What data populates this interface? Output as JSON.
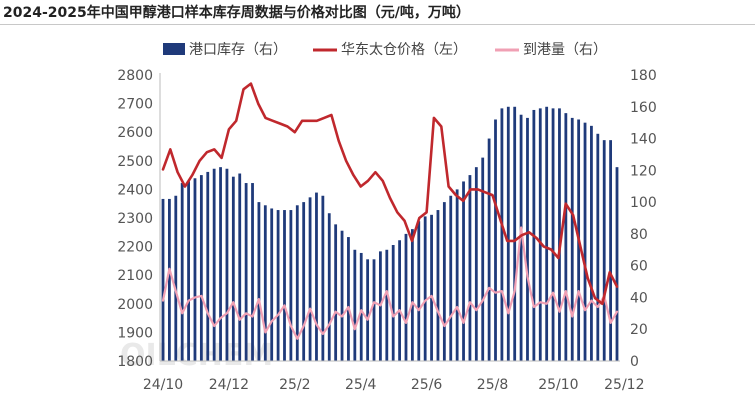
{
  "chart_data": {
    "type": "bar+line",
    "title": "2024-2025年中国甲醇港口样本库存周数据与价格对比图（元/吨，万吨）",
    "legend": [
      "港口库存（右）",
      "华东太仓价格（左）",
      "到港量（右）"
    ],
    "x_tick_labels": [
      "24/10",
      "24/12",
      "25/2",
      "25/4",
      "25/6",
      "25/8",
      "25/10",
      "25/12"
    ],
    "x_tick_index": [
      0,
      9,
      18,
      27,
      36,
      45,
      54,
      63
    ],
    "left_axis": {
      "range": [
        1800,
        2800
      ],
      "ticks": [
        1800,
        1900,
        2000,
        2100,
        2200,
        2300,
        2400,
        2500,
        2600,
        2700,
        2800
      ]
    },
    "right_axis": {
      "range": [
        0,
        180
      ],
      "ticks": [
        0,
        20,
        40,
        60,
        80,
        100,
        120,
        140,
        160,
        180
      ]
    },
    "watermark": "OILCHEM",
    "colors": {
      "inventory": "#1f3a7a",
      "price": "#c0282d",
      "arrivals": "#f0a0b4"
    },
    "series": [
      {
        "name": "港口库存（右）",
        "axis": "right",
        "type": "bar",
        "values": [
          102,
          102,
          104,
          112,
          113,
          115,
          117,
          119,
          121,
          122,
          121,
          116,
          118,
          112,
          112,
          100,
          98,
          96,
          95,
          95,
          95,
          98,
          100,
          103,
          106,
          104,
          93,
          86,
          82,
          78,
          70,
          68,
          64,
          64,
          69,
          70,
          73,
          76,
          80,
          83,
          88,
          91,
          92,
          95,
          100,
          104,
          108,
          113,
          117,
          122,
          128,
          140,
          152,
          159,
          160,
          160,
          155,
          153,
          158,
          159,
          160,
          159,
          159,
          156,
          153,
          152,
          150,
          148,
          143,
          139,
          139,
          122
        ]
      },
      {
        "name": "华东太仓价格（左）",
        "axis": "left",
        "type": "line",
        "values": [
          2470,
          2540,
          2460,
          2410,
          2450,
          2500,
          2530,
          2540,
          2510,
          2610,
          2640,
          2750,
          2770,
          2700,
          2650,
          2640,
          2630,
          2620,
          2600,
          2640,
          2640,
          2640,
          2650,
          2660,
          2570,
          2500,
          2450,
          2410,
          2430,
          2460,
          2430,
          2370,
          2320,
          2290,
          2220,
          2300,
          2320,
          2650,
          2620,
          2410,
          2380,
          2360,
          2400,
          2400,
          2390,
          2380,
          2300,
          2220,
          2220,
          2240,
          2250,
          2230,
          2200,
          2190,
          2160,
          2350,
          2310,
          2200,
          2090,
          2020,
          2000,
          2110,
          2060
        ]
      },
      {
        "name": "到港量（右）",
        "axis": "right",
        "type": "line",
        "values": [
          38,
          58,
          44,
          30,
          38,
          40,
          41,
          30,
          22,
          27,
          30,
          37,
          26,
          30,
          28,
          39,
          18,
          25,
          29,
          35,
          22,
          14,
          22,
          33,
          23,
          17,
          23,
          31,
          28,
          34,
          20,
          32,
          26,
          37,
          35,
          44,
          28,
          32,
          24,
          37,
          32,
          38,
          41,
          31,
          22,
          28,
          34,
          24,
          37,
          32,
          38,
          46,
          43,
          44,
          30,
          44,
          84,
          53,
          34,
          37,
          36,
          43,
          31,
          44,
          28,
          44,
          32,
          38,
          34,
          41,
          24,
          31
        ]
      }
    ]
  }
}
